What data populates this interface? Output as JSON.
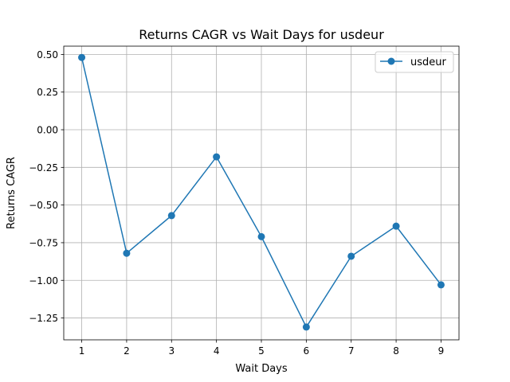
{
  "chart_data": {
    "type": "line",
    "title": "Returns CAGR vs Wait Days for usdeur",
    "xlabel": "Wait Days",
    "ylabel": "Returns CAGR",
    "x": [
      1,
      2,
      3,
      4,
      5,
      6,
      7,
      8,
      9
    ],
    "xlim": [
      0.6,
      9.4
    ],
    "ylim": [
      -1.395,
      0.555
    ],
    "xticks": [
      1,
      2,
      3,
      4,
      5,
      6,
      7,
      8,
      9
    ],
    "yticks": [
      0.5,
      0.25,
      0.0,
      -0.25,
      -0.5,
      -0.75,
      -1.0,
      -1.25
    ],
    "ytick_labels": [
      "0.50",
      "0.25",
      "0.00",
      "−0.25",
      "−0.50",
      "−0.75",
      "−1.00",
      "−1.25"
    ],
    "grid": true,
    "legend_position": "top-right",
    "series": [
      {
        "name": "usdeur",
        "color": "#1f77b4",
        "marker": "circle",
        "values": [
          0.48,
          -0.82,
          -0.57,
          -0.18,
          -0.71,
          -1.31,
          -0.84,
          -0.64,
          -1.03
        ]
      }
    ]
  }
}
